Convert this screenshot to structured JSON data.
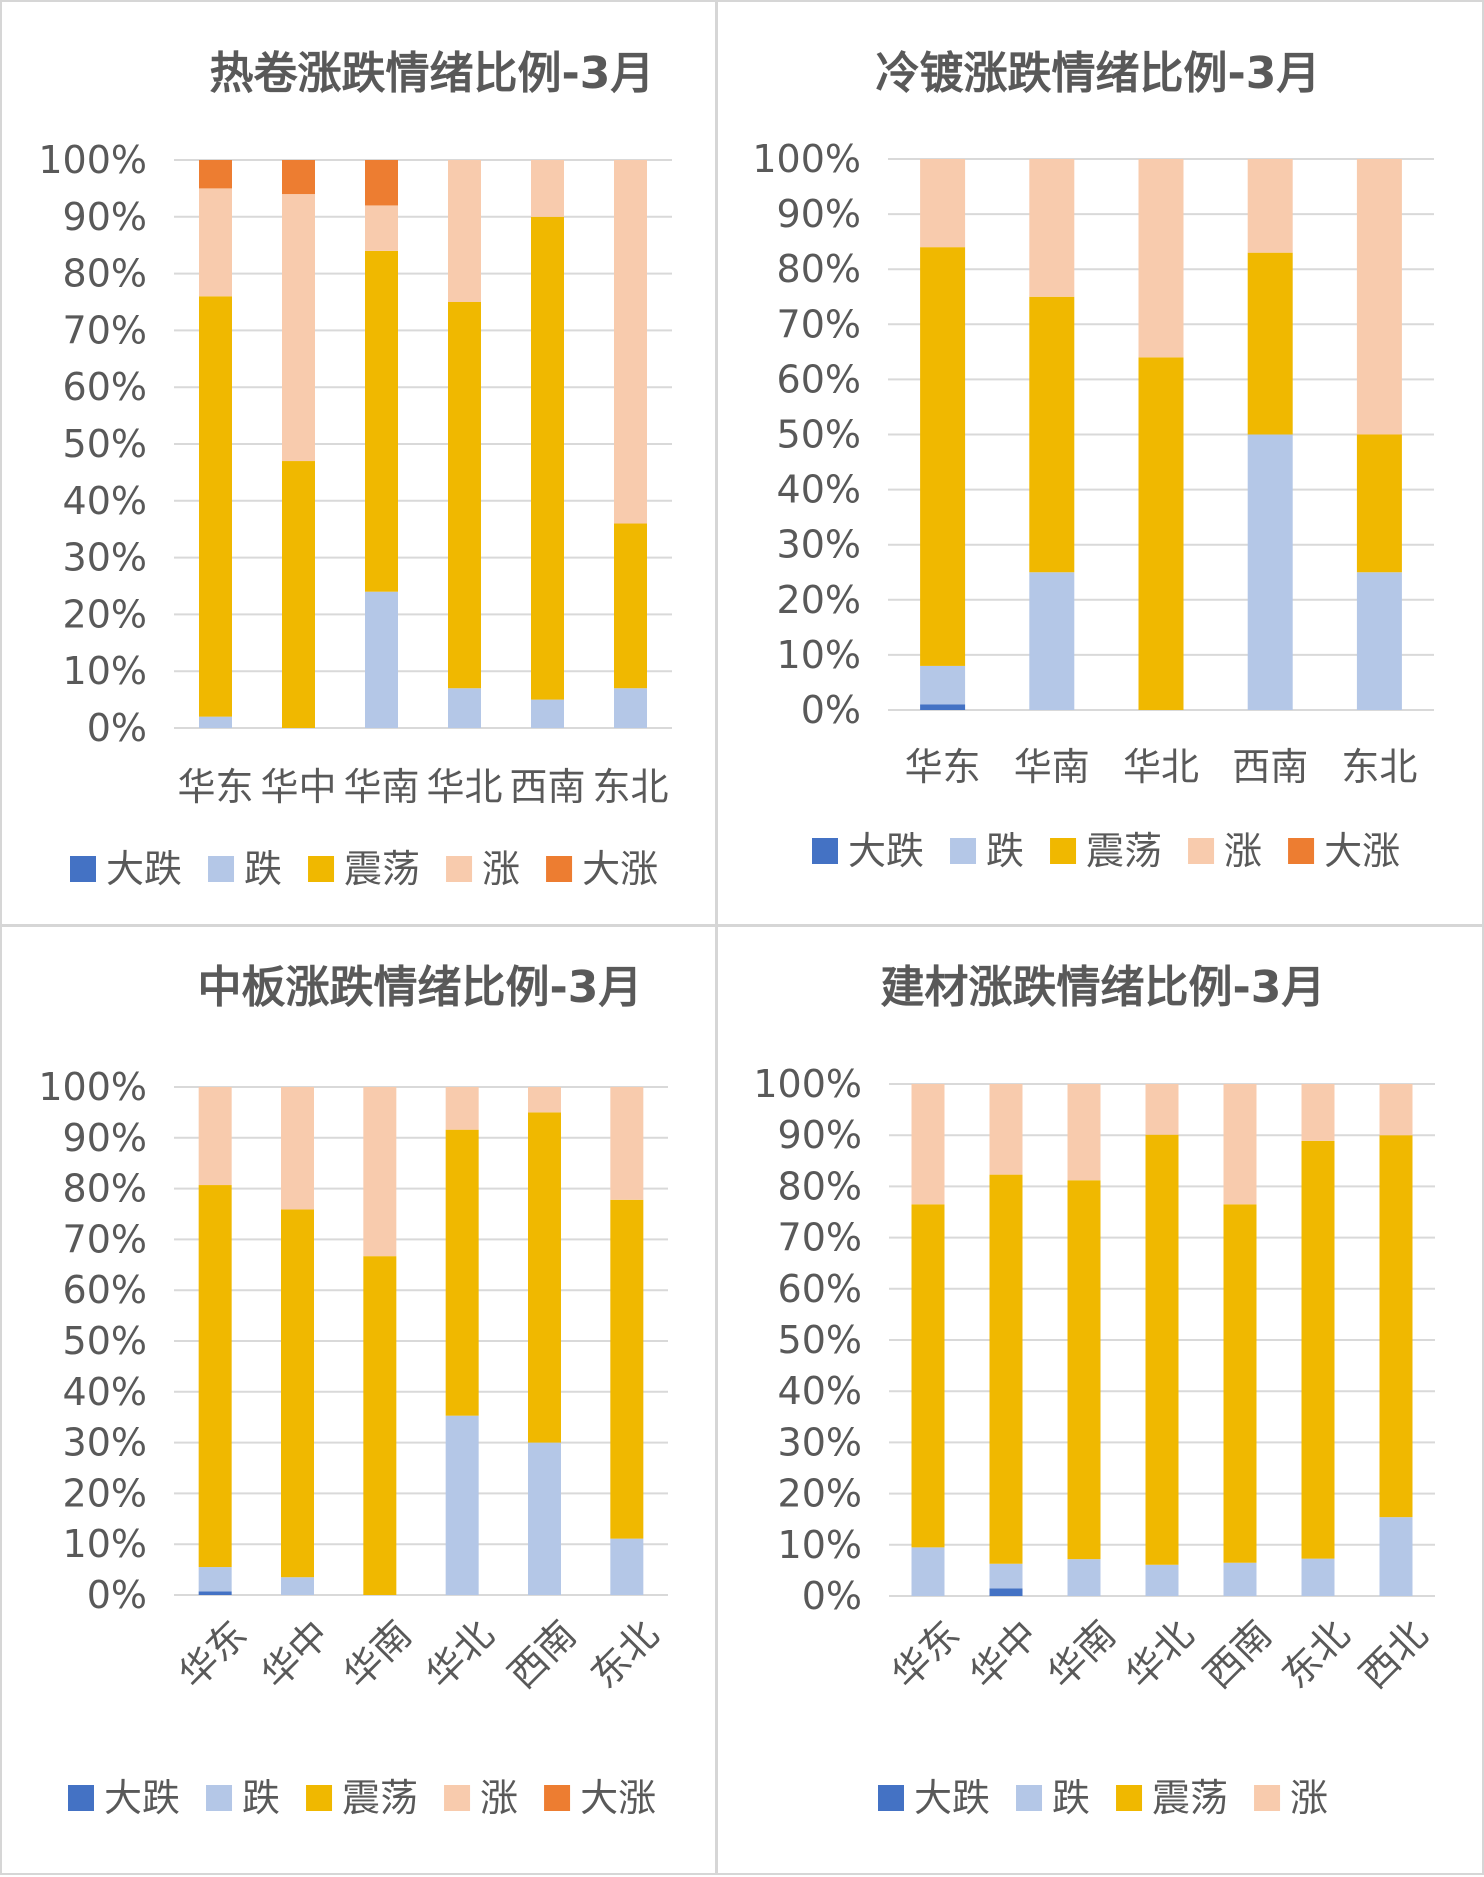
{
  "colors": {
    "大跌": "#4472c4",
    "跌": "#b4c7e7",
    "震荡": "#f0b800",
    "涨": "#f8cbad",
    "大涨": "#ed7d31"
  },
  "chart_data": [
    {
      "type": "bar",
      "stacked": true,
      "title": "热卷涨跌情绪比例-3月",
      "categories": [
        "华东",
        "华中",
        "华南",
        "华北",
        "西南",
        "东北"
      ],
      "ylim": [
        0,
        100
      ],
      "yticks": [
        "0%",
        "10%",
        "20%",
        "30%",
        "40%",
        "50%",
        "60%",
        "70%",
        "80%",
        "90%",
        "100%"
      ],
      "grid": true,
      "legend_position": "bottom",
      "series": [
        {
          "name": "大跌",
          "values": [
            0,
            0,
            0,
            0,
            0,
            0
          ]
        },
        {
          "name": "跌",
          "values": [
            2,
            0,
            24,
            7,
            5,
            7
          ]
        },
        {
          "name": "震荡",
          "values": [
            74,
            47,
            60,
            68,
            85,
            29
          ]
        },
        {
          "name": "涨",
          "values": [
            19,
            47,
            8,
            25,
            10,
            64
          ]
        },
        {
          "name": "大涨",
          "values": [
            5,
            6,
            8,
            0,
            0,
            0
          ]
        }
      ]
    },
    {
      "type": "bar",
      "stacked": true,
      "title": "冷镀涨跌情绪比例-3月",
      "categories": [
        "华东",
        "华南",
        "华北",
        "西南",
        "东北"
      ],
      "ylim": [
        0,
        100
      ],
      "yticks": [
        "0%",
        "10%",
        "20%",
        "30%",
        "40%",
        "50%",
        "60%",
        "70%",
        "80%",
        "90%",
        "100%"
      ],
      "grid": true,
      "legend_position": "bottom",
      "series": [
        {
          "name": "大跌",
          "values": [
            1,
            0,
            0,
            0,
            0
          ]
        },
        {
          "name": "跌",
          "values": [
            7,
            25,
            0,
            50,
            25
          ]
        },
        {
          "name": "震荡",
          "values": [
            76,
            50,
            64,
            33,
            25
          ]
        },
        {
          "name": "涨",
          "values": [
            16,
            25,
            36,
            17,
            50
          ]
        },
        {
          "name": "大涨",
          "values": [
            0,
            0,
            0,
            0,
            0
          ]
        }
      ]
    },
    {
      "type": "bar",
      "stacked": true,
      "title": "中板涨跌情绪比例-3月",
      "categories": [
        "华东",
        "华中",
        "华南",
        "华北",
        "西南",
        "东北"
      ],
      "ylim": [
        0,
        100
      ],
      "yticks": [
        "0%",
        "10%",
        "20%",
        "30%",
        "40%",
        "50%",
        "60%",
        "70%",
        "80%",
        "90%",
        "100%"
      ],
      "grid": true,
      "legend_position": "bottom",
      "series": [
        {
          "name": "大跌",
          "values": [
            0.7,
            0,
            0,
            0,
            0,
            0
          ]
        },
        {
          "name": "跌",
          "values": [
            4.8,
            3.5,
            0,
            35.3,
            30,
            11.1
          ]
        },
        {
          "name": "震荡",
          "values": [
            75.2,
            72.4,
            66.7,
            56.3,
            65,
            66.7
          ]
        },
        {
          "name": "涨",
          "values": [
            19.3,
            24.1,
            33.3,
            8.4,
            5,
            22.2
          ]
        },
        {
          "name": "大涨",
          "values": [
            0,
            0,
            0,
            0,
            0,
            0
          ]
        }
      ]
    },
    {
      "type": "bar",
      "stacked": true,
      "title": "建材涨跌情绪比例-3月",
      "categories": [
        "华东",
        "华中",
        "华南",
        "华北",
        "西南",
        "东北",
        "西北"
      ],
      "ylim": [
        0,
        100
      ],
      "yticks": [
        "0%",
        "10%",
        "20%",
        "30%",
        "40%",
        "50%",
        "60%",
        "70%",
        "80%",
        "90%",
        "100%"
      ],
      "grid": true,
      "legend_position": "bottom",
      "series": [
        {
          "name": "大跌",
          "values": [
            0,
            1.5,
            0,
            0,
            0,
            0,
            0
          ]
        },
        {
          "name": "跌",
          "values": [
            9.5,
            4.8,
            7.2,
            6.1,
            6.5,
            7.3,
            15.4
          ]
        },
        {
          "name": "震荡",
          "values": [
            67,
            76,
            74,
            84,
            70,
            81.6,
            74.6
          ]
        },
        {
          "name": "涨",
          "values": [
            23.5,
            17.7,
            18.8,
            9.9,
            23.5,
            11.1,
            10
          ]
        }
      ]
    }
  ]
}
